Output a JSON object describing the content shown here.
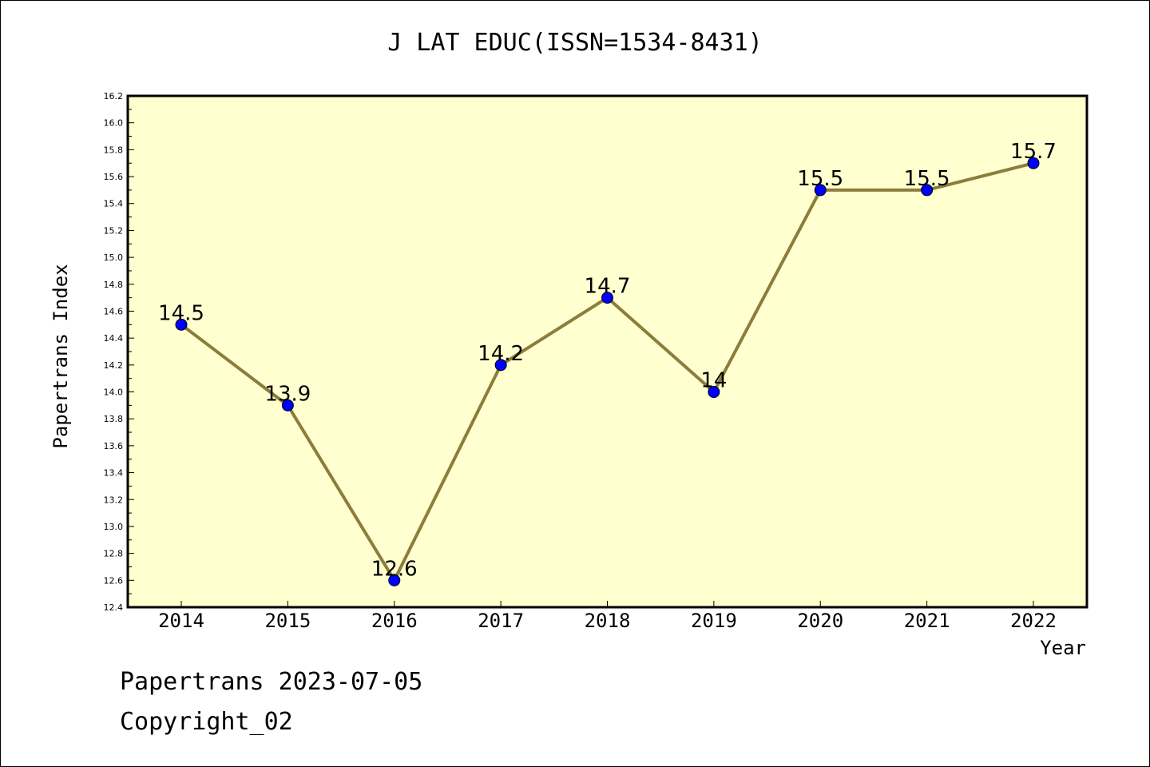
{
  "chart_data": {
    "type": "line",
    "title": "J LAT EDUC(ISSN=1534-8431)",
    "xlabel": "Year",
    "ylabel": "Papertrans Index",
    "categories": [
      "2014",
      "2015",
      "2016",
      "2017",
      "2018",
      "2019",
      "2020",
      "2021",
      "2022"
    ],
    "series": [
      {
        "values": [
          14.5,
          13.9,
          12.6,
          14.2,
          14.7,
          14.0,
          15.5,
          15.5,
          15.7
        ]
      }
    ],
    "data_labels": [
      "14.5",
      "13.9",
      "12.6",
      "14.2",
      "14.7",
      "14",
      "15.5",
      "15.5",
      "15.7"
    ],
    "ylim": [
      12.4,
      16.2
    ],
    "y_ticks": [
      "12.4",
      "12.6",
      "12.8",
      "13.0",
      "13.2",
      "13.4",
      "13.6",
      "13.8",
      "14.0",
      "14.2",
      "14.4",
      "14.6",
      "14.8",
      "15.0",
      "15.2",
      "15.4",
      "15.6",
      "15.8",
      "16.0",
      "16.2"
    ],
    "grid": false,
    "colors": {
      "plot_background": "#ffffd0",
      "line": "#8b7d3a",
      "marker": "#0000ff"
    }
  },
  "footer": {
    "line1": "Papertrans 2023-07-05",
    "line2": "Copyright_02"
  }
}
